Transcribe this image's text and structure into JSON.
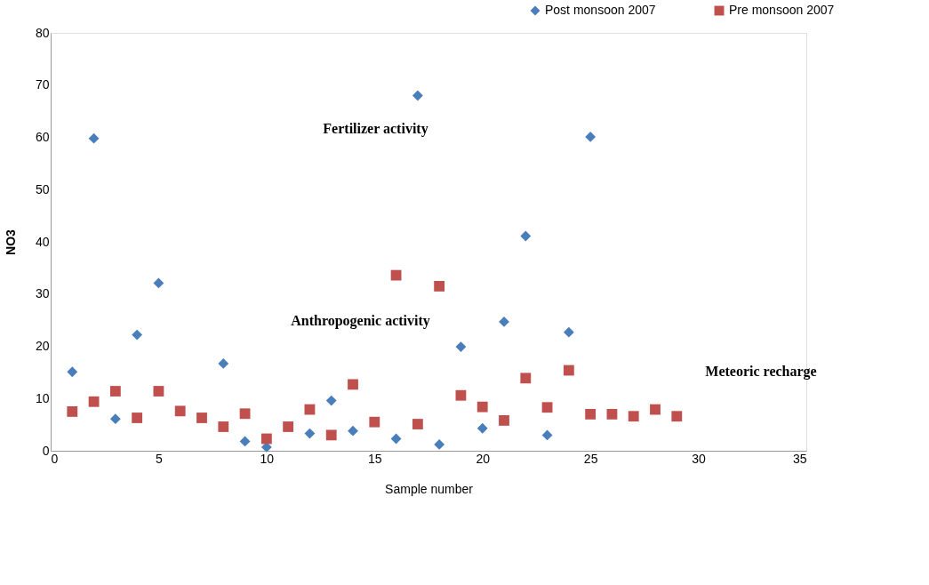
{
  "chart_data": {
    "type": "scatter",
    "xlabel": "Sample number",
    "ylabel": "NO3",
    "xlim": [
      0,
      35
    ],
    "xticks": [
      0,
      5,
      10,
      15,
      20,
      25,
      30,
      35
    ],
    "ylim": [
      0,
      80
    ],
    "yticks": [
      0,
      10,
      20,
      30,
      40,
      50,
      60,
      70,
      80
    ],
    "grid": false,
    "legend": "top right",
    "series": [
      {
        "name": "Post monsoon  2007",
        "color": "#4a7ebb",
        "marker": "diamond",
        "x": [
          1,
          2,
          3,
          4,
          5,
          8,
          9,
          10,
          12,
          13,
          14,
          16,
          17,
          18,
          19,
          20,
          21,
          22,
          23,
          24,
          25
        ],
        "values": [
          15.1,
          59.8,
          6.1,
          22.2,
          32.1,
          16.7,
          1.8,
          0.7,
          3.3,
          9.6,
          3.8,
          2.3,
          68.0,
          1.2,
          19.9,
          4.3,
          24.7,
          41.1,
          3.0,
          22.7,
          60.1
        ]
      },
      {
        "name": "Pre monsoon 2007",
        "color": "#c0504d",
        "marker": "square",
        "x": [
          1,
          2,
          3,
          4,
          5,
          6,
          7,
          8,
          9,
          10,
          11,
          12,
          13,
          14,
          15,
          16,
          17,
          18,
          19,
          20,
          21,
          22,
          23,
          24,
          25,
          26,
          27,
          28,
          29
        ],
        "values": [
          7.5,
          9.4,
          11.4,
          6.3,
          11.4,
          7.6,
          6.3,
          4.6,
          7.1,
          2.3,
          4.6,
          7.9,
          3.0,
          12.7,
          5.5,
          33.6,
          5.1,
          31.5,
          10.6,
          8.4,
          5.8,
          13.9,
          8.3,
          15.4,
          7.0,
          7.0,
          6.6,
          7.9,
          6.6
        ]
      }
    ],
    "annotations": [
      "Fertilizer activity",
      "Anthropogenic activity",
      "Meteoric recharge"
    ]
  }
}
